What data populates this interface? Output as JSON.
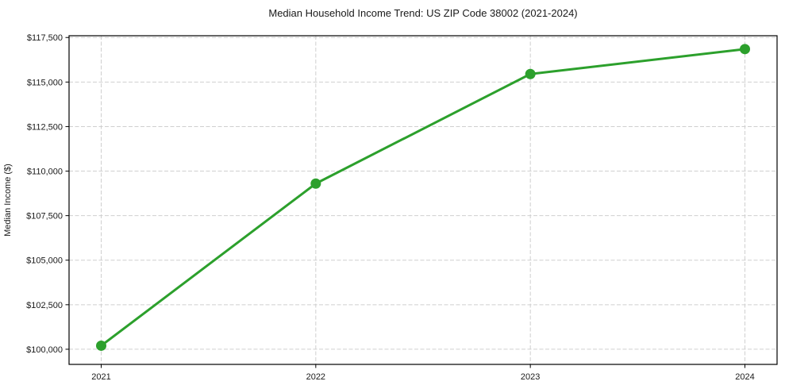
{
  "chart_data": {
    "type": "line",
    "title": "Median Household Income Trend: US ZIP Code 38002 (2021-2024)",
    "xlabel": "",
    "ylabel": "Median Income ($)",
    "categories": [
      "2021",
      "2022",
      "2023",
      "2024"
    ],
    "series": [
      {
        "name": "Median Household Income",
        "values": [
          100200,
          109300,
          115450,
          116850
        ]
      }
    ],
    "yticks": [
      100000,
      102500,
      105000,
      107500,
      110000,
      112500,
      115000,
      117500
    ],
    "ytick_labels": [
      "$100,000",
      "$102,500",
      "$105,000",
      "$107,500",
      "$110,000",
      "$112,500",
      "$115,000",
      "$117,500"
    ],
    "ylim": [
      99150,
      117600
    ],
    "grid": true,
    "grid_style": "dashed",
    "legend_position": "none",
    "colors": {
      "line": "#2ca02c",
      "marker": "#2ca02c",
      "grid": "#cfcfcf",
      "axis": "#000000",
      "text": "#1a1a1a",
      "background": "#ffffff"
    }
  }
}
